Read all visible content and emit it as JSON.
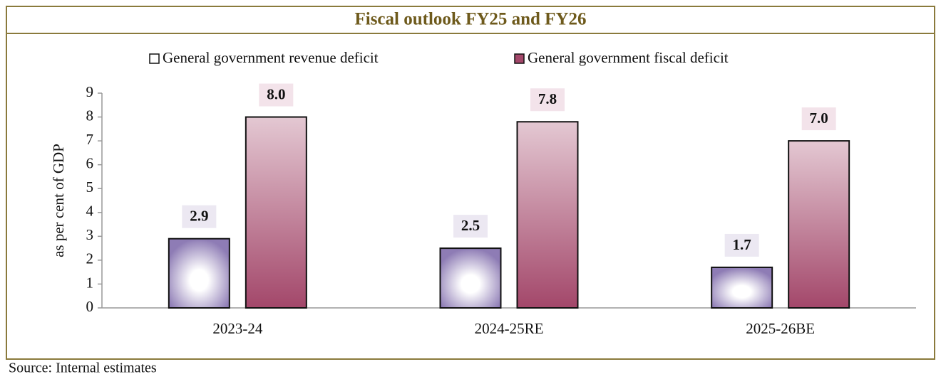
{
  "chart_data": {
    "type": "bar",
    "title": "Fiscal outlook FY25 and FY26",
    "y_label": "as per cent of GDP",
    "source": "Source: Internal estimates",
    "categories": [
      "2023-24",
      "2024-25RE",
      "2025-26BE"
    ],
    "series": [
      {
        "name": "General government revenue deficit",
        "color": "#8e7cb5",
        "values": [
          2.9,
          2.5,
          1.7
        ],
        "value_labels": [
          "2.9",
          "2.5",
          "1.7"
        ]
      },
      {
        "name": "General government fiscal deficit",
        "color": "#a3476a",
        "values": [
          8.0,
          7.8,
          7.0
        ],
        "value_labels": [
          "8.0",
          "7.8",
          "7.0"
        ]
      }
    ],
    "ylim": [
      0,
      9
    ],
    "yticks": [
      0,
      1,
      2,
      3,
      4,
      5,
      6,
      7,
      8,
      9
    ],
    "grid": false,
    "legend": "top"
  }
}
